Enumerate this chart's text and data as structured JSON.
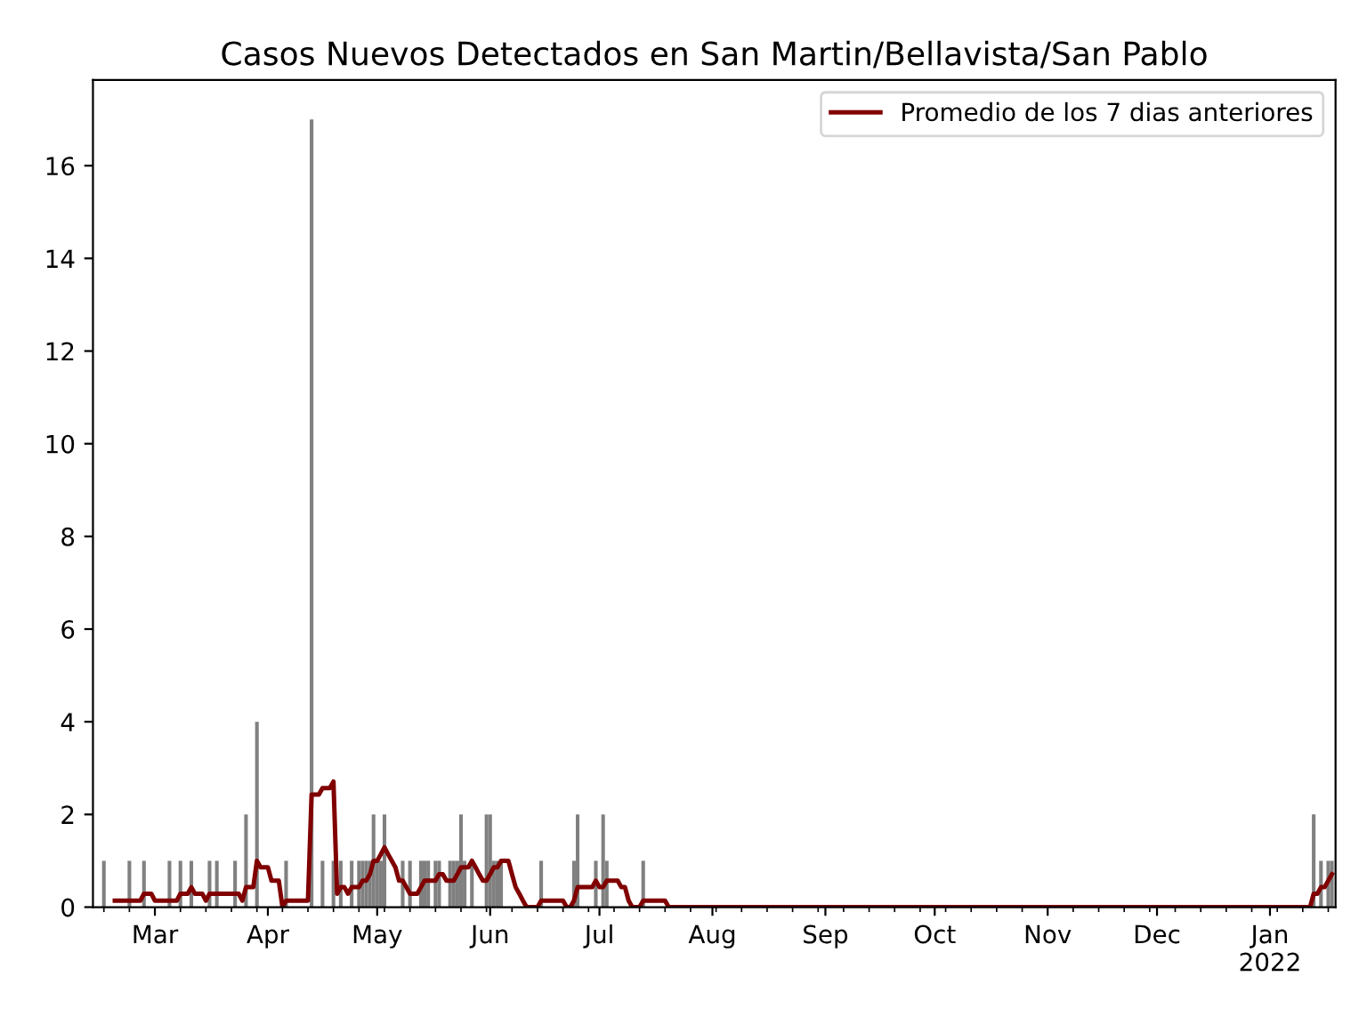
{
  "chart_data": {
    "type": "bar",
    "title": "Casos Nuevos Detectados en San Martin/Bellavista/San Pablo",
    "series": [
      {
        "color": "#808080",
        "x": [
          "2021-02-15",
          "2021-02-22",
          "2021-02-26",
          "2021-03-05",
          "2021-03-08",
          "2021-03-11",
          "2021-03-16",
          "2021-03-18",
          "2021-03-23",
          "2021-03-26",
          "2021-03-29",
          "2021-04-06",
          "2021-04-13",
          "2021-04-16",
          "2021-04-19",
          "2021-04-21",
          "2021-04-24",
          "2021-04-26",
          "2021-04-27",
          "2021-04-28",
          "2021-04-29",
          "2021-04-30",
          "2021-05-01",
          "2021-05-02",
          "2021-05-03",
          "2021-05-08",
          "2021-05-10",
          "2021-05-13",
          "2021-05-14",
          "2021-05-15",
          "2021-05-17",
          "2021-05-18",
          "2021-05-21",
          "2021-05-22",
          "2021-05-23",
          "2021-05-24",
          "2021-05-25",
          "2021-05-27",
          "2021-05-31",
          "2021-06-01",
          "2021-06-02",
          "2021-06-03",
          "2021-06-04",
          "2021-06-15",
          "2021-06-24",
          "2021-06-25",
          "2021-06-30",
          "2021-07-02",
          "2021-07-03",
          "2021-07-13",
          "2022-01-13",
          "2022-01-15",
          "2022-01-17",
          "2022-01-18"
        ],
        "values": [
          1,
          1,
          1,
          1,
          1,
          1,
          1,
          1,
          1,
          2,
          4,
          1,
          17,
          1,
          1,
          1,
          1,
          1,
          1,
          1,
          1,
          2,
          1,
          1,
          2,
          1,
          1,
          1,
          1,
          1,
          1,
          1,
          1,
          1,
          1,
          2,
          1,
          1,
          2,
          2,
          1,
          1,
          1,
          1,
          1,
          2,
          1,
          2,
          1,
          1,
          2,
          1,
          1,
          1
        ]
      },
      {
        "type": "line",
        "name": "Promedio de los 7 dias anteriores",
        "color": "#800000",
        "x": [
          "2021-02-18",
          "2021-02-25",
          "2021-02-26",
          "2021-02-28",
          "2021-03-01",
          "2021-03-07",
          "2021-03-08",
          "2021-03-10",
          "2021-03-11",
          "2021-03-12",
          "2021-03-14",
          "2021-03-15",
          "2021-03-16",
          "2021-03-24",
          "2021-03-25",
          "2021-03-26",
          "2021-03-28",
          "2021-03-29",
          "2021-03-30",
          "2021-04-01",
          "2021-04-02",
          "2021-04-04",
          "2021-04-05",
          "2021-04-06",
          "2021-04-12",
          "2021-04-13",
          "2021-04-15",
          "2021-04-16",
          "2021-04-18",
          "2021-04-19",
          "2021-04-20",
          "2021-04-21",
          "2021-04-22",
          "2021-04-23",
          "2021-04-24",
          "2021-04-26",
          "2021-04-27",
          "2021-04-28",
          "2021-04-29",
          "2021-04-30",
          "2021-05-01",
          "2021-05-02",
          "2021-05-03",
          "2021-05-04",
          "2021-05-05",
          "2021-05-06",
          "2021-05-07",
          "2021-05-08",
          "2021-05-09",
          "2021-05-10",
          "2021-05-12",
          "2021-05-13",
          "2021-05-14",
          "2021-05-17",
          "2021-05-18",
          "2021-05-19",
          "2021-05-20",
          "2021-05-22",
          "2021-05-23",
          "2021-05-24",
          "2021-05-26",
          "2021-05-27",
          "2021-05-28",
          "2021-05-29",
          "2021-05-30",
          "2021-05-31",
          "2021-06-01",
          "2021-06-02",
          "2021-06-03",
          "2021-06-04",
          "2021-06-06",
          "2021-06-07",
          "2021-06-08",
          "2021-06-09",
          "2021-06-10",
          "2021-06-11",
          "2021-06-14",
          "2021-06-15",
          "2021-06-21",
          "2021-06-22",
          "2021-06-23",
          "2021-06-24",
          "2021-06-25",
          "2021-06-29",
          "2021-06-30",
          "2021-07-01",
          "2021-07-02",
          "2021-07-03",
          "2021-07-06",
          "2021-07-07",
          "2021-07-08",
          "2021-07-09",
          "2021-07-10",
          "2021-07-12",
          "2021-07-13",
          "2021-07-19",
          "2021-07-20",
          "2022-01-12",
          "2022-01-13",
          "2022-01-14",
          "2022-01-15",
          "2022-01-16",
          "2022-01-17",
          "2022-01-18"
        ],
        "values": [
          0.14,
          0.14,
          0.29,
          0.29,
          0.14,
          0.14,
          0.29,
          0.29,
          0.43,
          0.29,
          0.29,
          0.14,
          0.29,
          0.29,
          0.14,
          0.43,
          0.43,
          1.0,
          0.86,
          0.86,
          0.57,
          0.57,
          0,
          0.14,
          0.14,
          2.43,
          2.43,
          2.57,
          2.57,
          2.71,
          0.29,
          0.43,
          0.43,
          0.29,
          0.43,
          0.43,
          0.57,
          0.57,
          0.71,
          1.0,
          1.0,
          1.14,
          1.29,
          1.14,
          1.0,
          0.86,
          0.57,
          0.57,
          0.43,
          0.29,
          0.29,
          0.43,
          0.57,
          0.57,
          0.71,
          0.71,
          0.57,
          0.57,
          0.71,
          0.86,
          0.86,
          1.0,
          0.86,
          0.71,
          0.57,
          0.57,
          0.71,
          0.86,
          0.86,
          1.0,
          1.0,
          0.71,
          0.43,
          0.29,
          0.14,
          0,
          0,
          0.14,
          0.14,
          0,
          0,
          0.14,
          0.43,
          0.43,
          0.57,
          0.43,
          0.43,
          0.57,
          0.57,
          0.43,
          0.43,
          0.14,
          0,
          0,
          0.14,
          0.14,
          0,
          0,
          0.29,
          0.29,
          0.43,
          0.43,
          0.57,
          0.71
        ]
      }
    ],
    "xlim": [
      "2021-02-12",
      "2022-01-19"
    ],
    "xticks": [
      {
        "value": "2021-03-01",
        "label": "Mar"
      },
      {
        "value": "2021-04-01",
        "label": "Apr"
      },
      {
        "value": "2021-05-01",
        "label": "May"
      },
      {
        "value": "2021-06-01",
        "label": "Jun"
      },
      {
        "value": "2021-07-01",
        "label": "Jul"
      },
      {
        "value": "2021-08-01",
        "label": "Aug"
      },
      {
        "value": "2021-09-01",
        "label": "Sep"
      },
      {
        "value": "2021-10-01",
        "label": "Oct"
      },
      {
        "value": "2021-11-01",
        "label": "Nov"
      },
      {
        "value": "2021-12-01",
        "label": "Dec"
      },
      {
        "value": "2022-01-01",
        "label": "Jan\n2022"
      }
    ],
    "ylim": [
      0,
      17.85
    ],
    "yticks": [
      0,
      2,
      4,
      6,
      8,
      10,
      12,
      14,
      16
    ],
    "grid": false,
    "legend": "top right"
  }
}
